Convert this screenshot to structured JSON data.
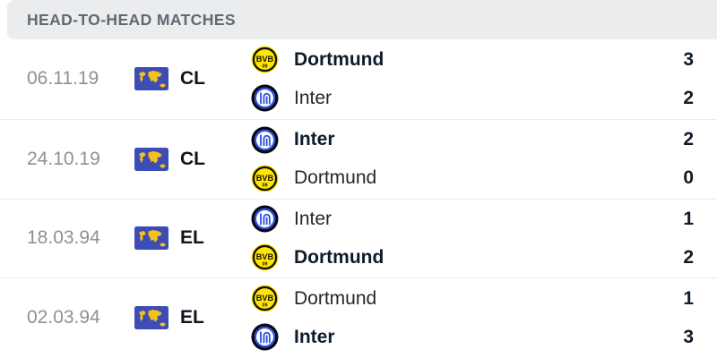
{
  "header": {
    "title": "HEAD-TO-HEAD MATCHES"
  },
  "colors": {
    "header_bg": "#ebecee",
    "header_text": "#5f6974",
    "date_text": "#8d9196",
    "winner_text": "#0f1b2b",
    "regular_text": "#23272c",
    "divider": "#ececee",
    "flag_blue": "#3d4db5",
    "flag_yellow": "#f2c218",
    "bvb_yellow": "#ffe600",
    "inter_blue": "#2f53e0"
  },
  "matches": [
    {
      "date": "06.11.19",
      "competition": "CL",
      "competition_icon": "world-flag-icon",
      "teams": [
        {
          "name": "Dortmund",
          "logo": "dortmund-logo",
          "score": "3",
          "winner": true
        },
        {
          "name": "Inter",
          "logo": "inter-logo",
          "score": "2",
          "winner": false
        }
      ]
    },
    {
      "date": "24.10.19",
      "competition": "CL",
      "competition_icon": "world-flag-icon",
      "teams": [
        {
          "name": "Inter",
          "logo": "inter-logo",
          "score": "2",
          "winner": true
        },
        {
          "name": "Dortmund",
          "logo": "dortmund-logo",
          "score": "0",
          "winner": false
        }
      ]
    },
    {
      "date": "18.03.94",
      "competition": "EL",
      "competition_icon": "world-flag-icon",
      "teams": [
        {
          "name": "Inter",
          "logo": "inter-logo",
          "score": "1",
          "winner": false
        },
        {
          "name": "Dortmund",
          "logo": "dortmund-logo",
          "score": "2",
          "winner": true
        }
      ]
    },
    {
      "date": "02.03.94",
      "competition": "EL",
      "competition_icon": "world-flag-icon",
      "teams": [
        {
          "name": "Dortmund",
          "logo": "dortmund-logo",
          "score": "1",
          "winner": false
        },
        {
          "name": "Inter",
          "logo": "inter-logo",
          "score": "3",
          "winner": true
        }
      ]
    }
  ]
}
